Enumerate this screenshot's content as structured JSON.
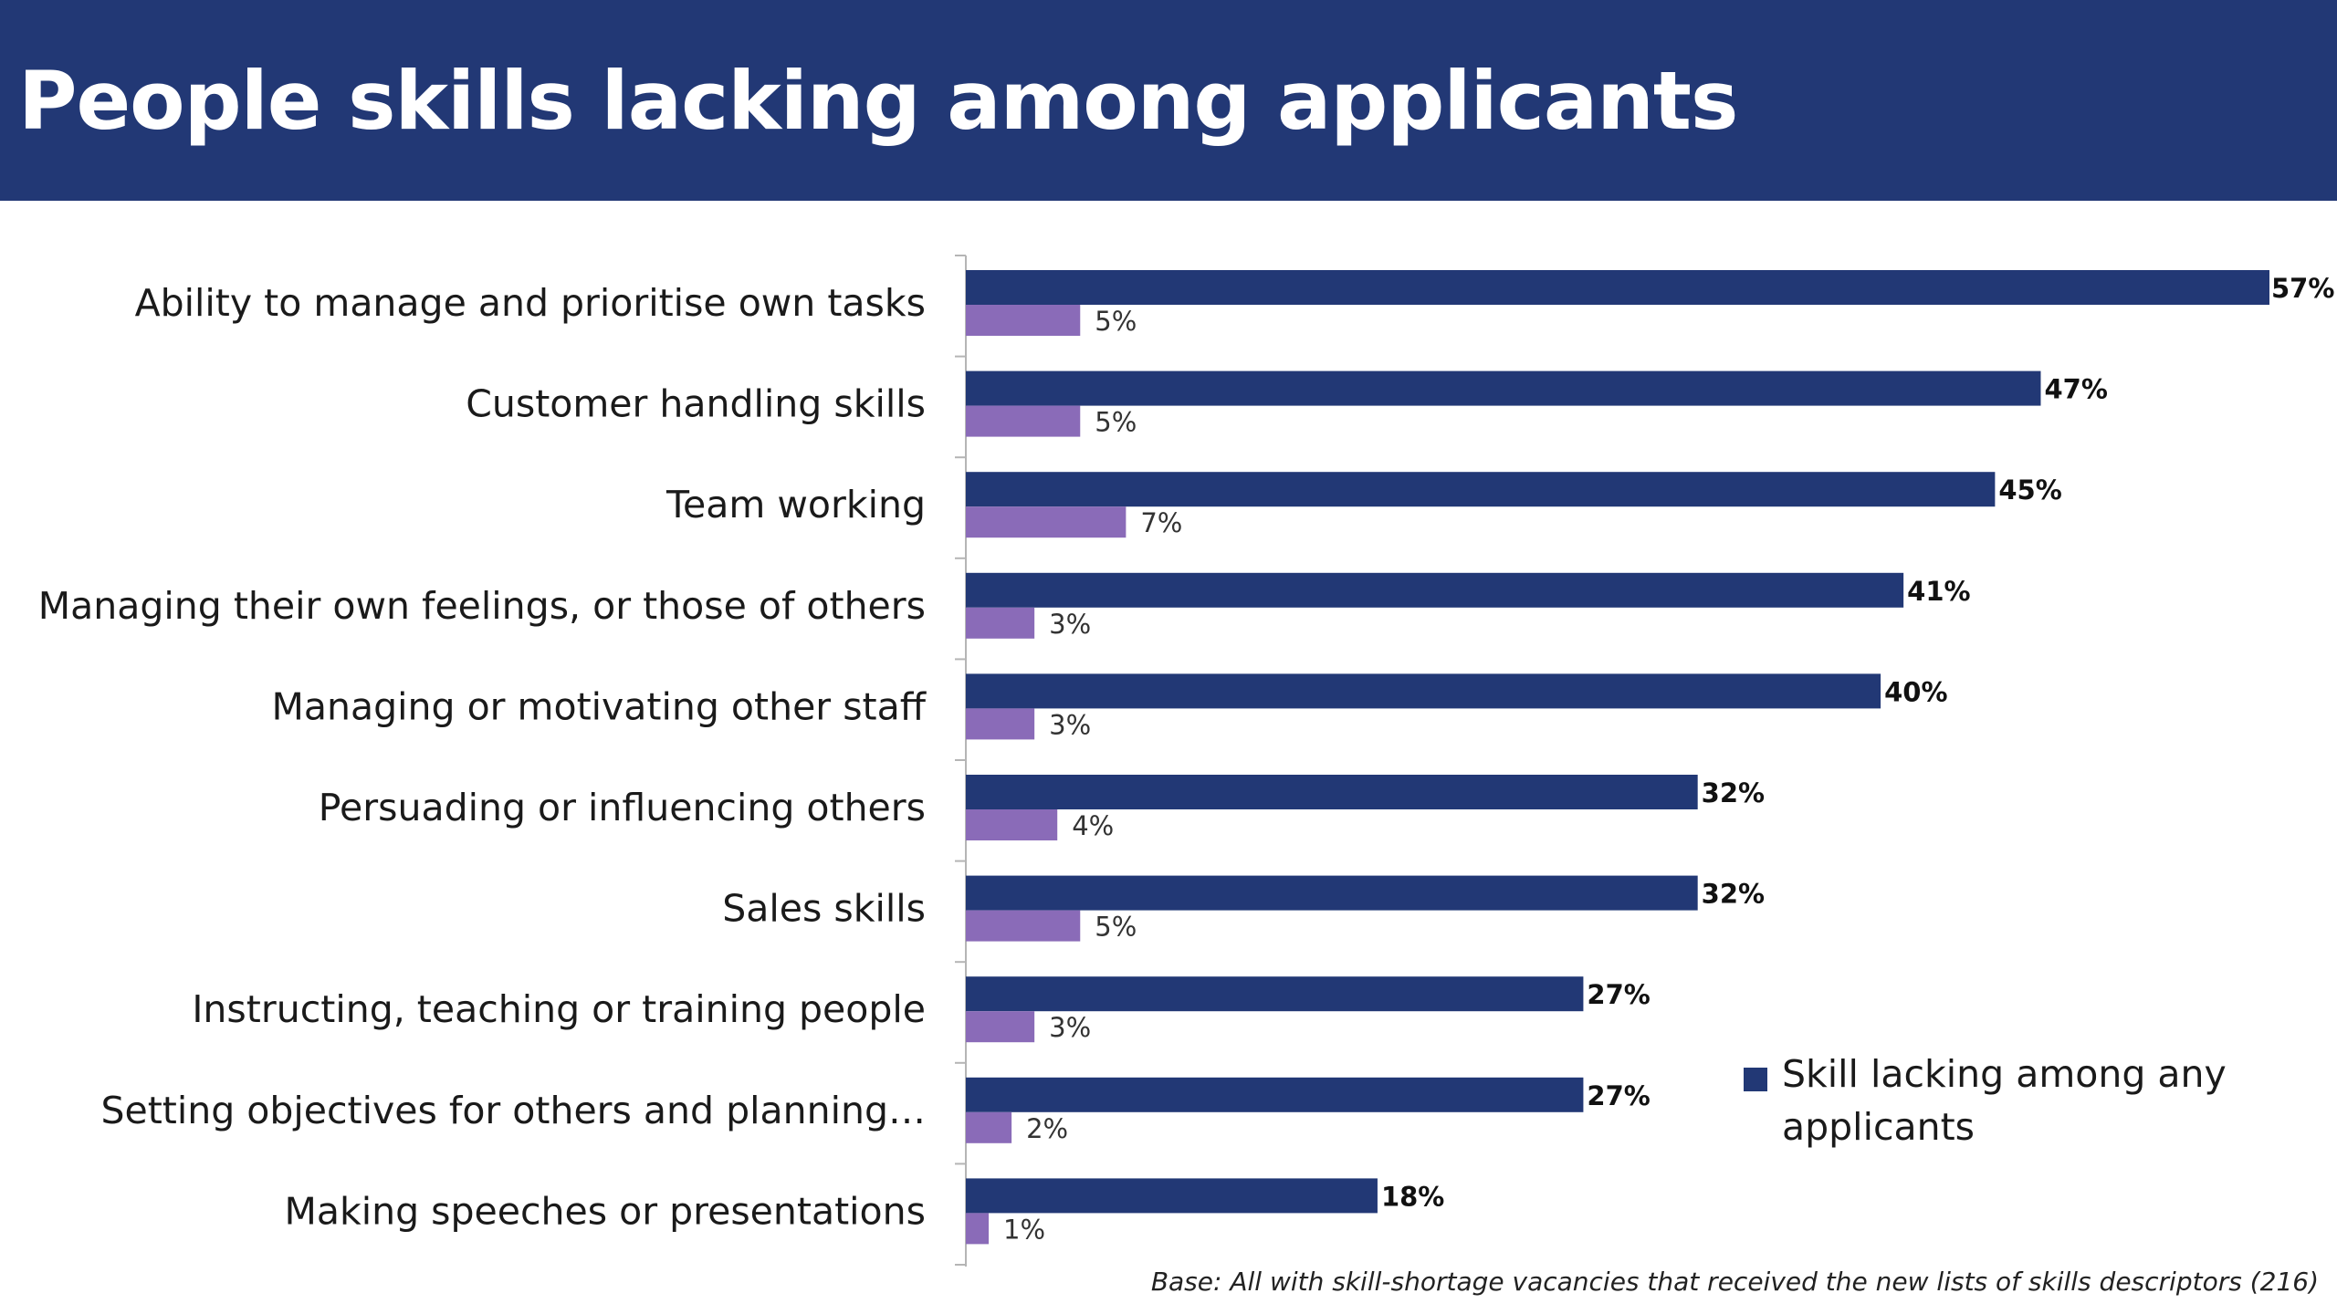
{
  "header": {
    "title": "People skills lacking among applicants"
  },
  "colors": {
    "header_bg": "#223875",
    "primary_bar": "#223875",
    "secondary_bar": "#8a6bb8"
  },
  "chart_data": {
    "type": "bar",
    "orientation": "horizontal",
    "title": "People skills lacking among applicants",
    "categories": [
      "Ability to manage and prioritise own tasks",
      "Customer handling skills",
      "Team working",
      "Managing their own feelings, or those of others",
      "Managing or motivating other staff",
      "Persuading or influencing others",
      "Sales skills",
      "Instructing, teaching or training people",
      "Setting objectives for others and planning…",
      "Making speeches or presentations"
    ],
    "series": [
      {
        "name": "Skill lacking among any applicants",
        "values": [
          57,
          47,
          45,
          41,
          40,
          32,
          32,
          27,
          27,
          18
        ],
        "labels": [
          "57%",
          "47%",
          "45%",
          "41%",
          "40%",
          "32%",
          "32%",
          "27%",
          "27%",
          "18%"
        ],
        "color": "#223875"
      },
      {
        "values": [
          5,
          5,
          7,
          3,
          3,
          4,
          5,
          3,
          2,
          1
        ],
        "labels": [
          "5%",
          "5%",
          "7%",
          "3%",
          "3%",
          "4%",
          "5%",
          "3%",
          "2%",
          "1%"
        ],
        "color": "#8a6bb8"
      }
    ],
    "xlim": [
      0,
      57
    ],
    "legend": {
      "placement": "bottom-right",
      "label": "Skill lacking among any applicants"
    },
    "grid": false
  },
  "footnote": "Base: All with skill-shortage vacancies that received the new lists of skills descriptors (216)"
}
